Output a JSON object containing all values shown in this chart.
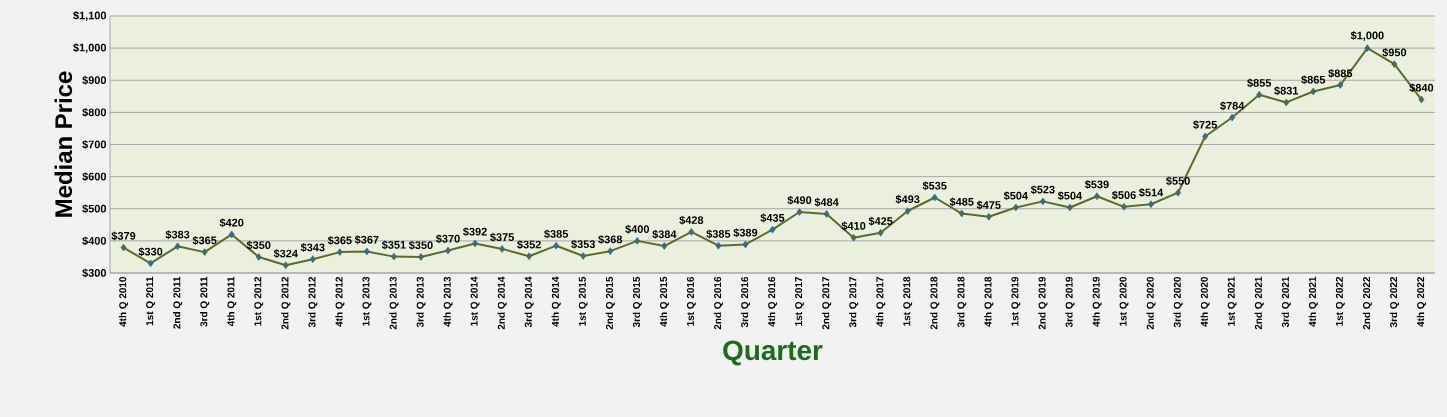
{
  "chart_data": {
    "type": "line",
    "xlabel": "Quarter",
    "ylabel": "Median Price",
    "categories": [
      "4th Q 2010",
      "1st Q 2011",
      "2nd Q 2011",
      "3rd Q 2011",
      "4th Q 2011",
      "1st Q 2012",
      "2nd Q 2012",
      "3rd Q 2012",
      "4th Q 2012",
      "1st Q 2013",
      "2nd Q 2013",
      "3rd Q 2013",
      "4th Q 2013",
      "1st Q 2014",
      "2nd Q 2014",
      "3rd Q 2014",
      "4th Q 2014",
      "1st Q 2015",
      "2nd Q 2015",
      "3rd Q 2015",
      "4th Q 2015",
      "1st Q 2016",
      "2nd Q 2016",
      "3rd Q 2016",
      "4th Q 2016",
      "1st Q 2017",
      "2nd Q 2017",
      "3rd Q 2017",
      "4th Q 2017",
      "1st Q 2018",
      "2nd Q 2018",
      "3rd Q 2018",
      "4th Q 2018",
      "1st Q 2019",
      "2nd Q 2019",
      "3rd Q 2019",
      "4th Q 2019",
      "1st Q 2020",
      "2nd Q 2020",
      "3rd Q 2020",
      "4th Q 2020",
      "1st Q 2021",
      "2nd Q 2021",
      "3rd Q 2021",
      "4th Q 2021",
      "1st Q 2022",
      "2nd Q 2022",
      "3rd Q 2022",
      "4th Q 2022"
    ],
    "values": [
      379,
      330,
      383,
      365,
      420,
      350,
      324,
      343,
      365,
      367,
      351,
      350,
      370,
      392,
      375,
      352,
      385,
      353,
      368,
      400,
      384,
      428,
      385,
      389,
      435,
      490,
      484,
      410,
      425,
      493,
      535,
      485,
      475,
      504,
      523,
      504,
      539,
      506,
      514,
      550,
      725,
      784,
      855,
      831,
      865,
      885,
      1000,
      950,
      840
    ],
    "value_labels": [
      "$379",
      "$330",
      "$383",
      "$365",
      "$420",
      "$350",
      "$324",
      "$343",
      "$365",
      "$367",
      "$351",
      "$350",
      "$370",
      "$392",
      "$375",
      "$352",
      "$385",
      "$353",
      "$368",
      "$400",
      "$384",
      "$428",
      "$385",
      "$389",
      "$435",
      "$490",
      "$484",
      "$410",
      "$425",
      "$493",
      "$535",
      "$485",
      "$475",
      "$504",
      "$523",
      "$504",
      "$539",
      "$506",
      "$514",
      "$550",
      "$725",
      "$784",
      "$855",
      "$831",
      "$865",
      "$885",
      "$1,000",
      "$950",
      "$840"
    ],
    "color": "#5b6b2c",
    "marker": "diamond",
    "line_style": "solid",
    "grid": "y",
    "ylim": [
      300,
      1100
    ],
    "yticks": [
      {
        "value": 300,
        "label": "$300"
      },
      {
        "value": 400,
        "label": "$400"
      },
      {
        "value": 500,
        "label": "$500"
      },
      {
        "value": 600,
        "label": "$600"
      },
      {
        "value": 700,
        "label": "$700"
      },
      {
        "value": 800,
        "label": "$800"
      },
      {
        "value": 900,
        "label": "$900"
      },
      {
        "value": 1000,
        "label": "$1,000"
      },
      {
        "value": 1100,
        "label": "$1,100"
      }
    ]
  }
}
